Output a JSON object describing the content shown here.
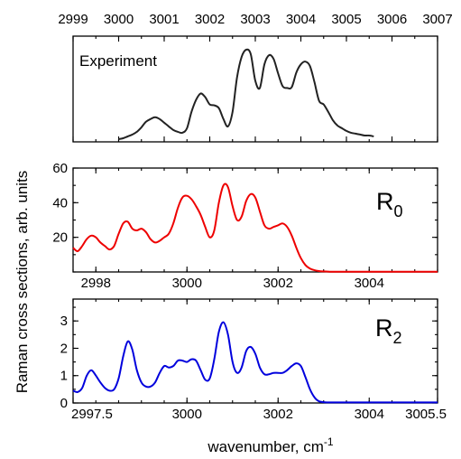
{
  "chart_data": [
    {
      "id": "experiment",
      "type": "line",
      "panel_label": "Experiment",
      "x_axis_position": "top",
      "xlim": [
        2999,
        3007
      ],
      "x_ticks": [
        2999,
        3000,
        3001,
        3002,
        3003,
        3004,
        3005,
        3006,
        3007
      ],
      "y_ticks": [],
      "color": "#222222",
      "series": [
        {
          "x": [
            3000.0,
            3000.1,
            3000.2,
            3000.3,
            3000.4,
            3000.5,
            3000.6,
            3000.7,
            3000.8,
            3000.9,
            3001.0,
            3001.1,
            3001.2,
            3001.3,
            3001.4,
            3001.5,
            3001.6,
            3001.7,
            3001.8,
            3001.9,
            3002.0,
            3002.1,
            3002.2,
            3002.3,
            3002.4,
            3002.5,
            3002.6,
            3002.7,
            3002.8,
            3002.9,
            3003.0,
            3003.1,
            3003.2,
            3003.3,
            3003.4,
            3003.5,
            3003.6,
            3003.7,
            3003.8,
            3003.9,
            3004.0,
            3004.1,
            3004.2,
            3004.3,
            3004.4,
            3004.5,
            3004.6,
            3004.7,
            3004.8,
            3004.9,
            3005.0,
            3005.1,
            3005.2,
            3005.3,
            3005.4,
            3005.5,
            3005.6
          ],
          "values": [
            0.0,
            0.01,
            0.03,
            0.05,
            0.08,
            0.13,
            0.19,
            0.22,
            0.24,
            0.22,
            0.18,
            0.14,
            0.1,
            0.08,
            0.07,
            0.12,
            0.3,
            0.43,
            0.5,
            0.46,
            0.38,
            0.37,
            0.34,
            0.22,
            0.14,
            0.3,
            0.68,
            0.9,
            0.98,
            0.93,
            0.64,
            0.56,
            0.82,
            0.92,
            0.88,
            0.72,
            0.58,
            0.56,
            0.57,
            0.73,
            0.82,
            0.85,
            0.8,
            0.62,
            0.42,
            0.38,
            0.3,
            0.21,
            0.15,
            0.12,
            0.09,
            0.07,
            0.06,
            0.05,
            0.04,
            0.04,
            0.03
          ]
        }
      ]
    },
    {
      "id": "R0",
      "type": "line",
      "panel_label_main": "R",
      "panel_label_sub": "0",
      "xlim": [
        2997.5,
        3005.5
      ],
      "ylim": [
        0,
        60
      ],
      "x_ticks": [
        2998,
        3000,
        3002,
        3004
      ],
      "y_ticks": [
        20,
        40,
        60
      ],
      "color": "#ee0000",
      "series": [
        {
          "x": [
            2997.5,
            2997.6,
            2997.7,
            2997.8,
            2997.9,
            2998.0,
            2998.1,
            2998.2,
            2998.3,
            2998.4,
            2998.5,
            2998.6,
            2998.7,
            2998.8,
            2998.9,
            2999.0,
            2999.1,
            2999.2,
            2999.3,
            2999.4,
            2999.5,
            2999.6,
            2999.7,
            2999.8,
            2999.9,
            3000.0,
            3000.1,
            3000.2,
            3000.3,
            3000.4,
            3000.5,
            3000.6,
            3000.7,
            3000.8,
            3000.9,
            3001.0,
            3001.1,
            3001.2,
            3001.3,
            3001.4,
            3001.5,
            3001.6,
            3001.7,
            3001.8,
            3001.9,
            3002.0,
            3002.1,
            3002.2,
            3002.3,
            3002.4,
            3002.5,
            3002.6,
            3002.7,
            3002.8,
            3002.9,
            3003.0,
            3003.1,
            3003.2,
            3003.3,
            3003.4,
            3003.5,
            3003.6,
            3003.7,
            3003.8,
            3003.9,
            3004.0,
            3004.5,
            3005.0,
            3005.5
          ],
          "values": [
            14,
            12,
            15,
            19,
            21,
            20,
            17,
            15,
            13,
            15,
            22,
            28,
            29,
            25,
            24,
            25,
            23,
            19,
            17,
            18,
            20,
            22,
            28,
            37,
            43,
            44,
            42,
            38,
            33,
            26,
            20,
            24,
            40,
            50,
            49,
            38,
            30,
            32,
            41,
            45,
            43,
            35,
            27,
            25,
            26,
            27,
            28,
            26,
            21,
            14,
            8,
            4,
            2,
            1,
            0.5,
            0.3,
            0.2,
            0.1,
            0.1,
            0.1,
            0.1,
            0.1,
            0.1,
            0.1,
            0.1,
            0.1,
            0.1,
            0.1,
            0.1
          ]
        }
      ]
    },
    {
      "id": "R2",
      "type": "line",
      "panel_label_main": "R",
      "panel_label_sub": "2",
      "xlim": [
        2997.5,
        3005.5
      ],
      "ylim": [
        0,
        3.8
      ],
      "x_ticks": [
        2997.5,
        3000,
        3002,
        3004,
        3005.5
      ],
      "x_tick_labels": [
        "2997.5",
        "3000",
        "3002",
        "3004",
        "3005.5"
      ],
      "y_ticks": [
        0,
        1,
        2,
        3
      ],
      "color": "#0000dd",
      "series": [
        {
          "x": [
            2997.5,
            2997.6,
            2997.7,
            2997.8,
            2997.9,
            2998.0,
            2998.1,
            2998.2,
            2998.3,
            2998.4,
            2998.5,
            2998.6,
            2998.7,
            2998.8,
            2998.9,
            2999.0,
            2999.1,
            2999.2,
            2999.3,
            2999.4,
            2999.5,
            2999.6,
            2999.7,
            2999.8,
            2999.9,
            3000.0,
            3000.1,
            3000.2,
            3000.3,
            3000.4,
            3000.5,
            3000.6,
            3000.7,
            3000.8,
            3000.9,
            3001.0,
            3001.1,
            3001.2,
            3001.3,
            3001.4,
            3001.5,
            3001.6,
            3001.7,
            3001.8,
            3001.9,
            3002.0,
            3002.1,
            3002.2,
            3002.3,
            3002.4,
            3002.5,
            3002.6,
            3002.7,
            3002.8,
            3002.9,
            3003.0,
            3003.1,
            3003.2,
            3003.3,
            3003.4,
            3003.5,
            3003.6,
            3003.7,
            3003.8,
            3003.9,
            3004.0,
            3004.5,
            3005.0,
            3005.5
          ],
          "values": [
            0.45,
            0.4,
            0.55,
            1.0,
            1.2,
            1.0,
            0.75,
            0.55,
            0.45,
            0.5,
            0.9,
            1.7,
            2.25,
            1.95,
            1.2,
            0.75,
            0.6,
            0.6,
            0.75,
            1.1,
            1.35,
            1.3,
            1.35,
            1.55,
            1.55,
            1.5,
            1.6,
            1.55,
            1.2,
            0.85,
            0.9,
            1.6,
            2.6,
            2.95,
            2.5,
            1.5,
            1.1,
            1.3,
            1.9,
            2.05,
            1.8,
            1.3,
            1.05,
            1.05,
            1.1,
            1.1,
            1.1,
            1.2,
            1.35,
            1.45,
            1.35,
            0.95,
            0.5,
            0.2,
            0.06,
            0.03,
            0.02,
            0.02,
            0.02,
            0.02,
            0.02,
            0.02,
            0.02,
            0.02,
            0.02,
            0.02,
            0.02,
            0.02,
            0.02
          ]
        }
      ]
    }
  ],
  "shared_ylabel": "Raman cross sections, arb. units",
  "shared_xlabel_main": "wavenumber, cm",
  "shared_xlabel_exp": "-1"
}
